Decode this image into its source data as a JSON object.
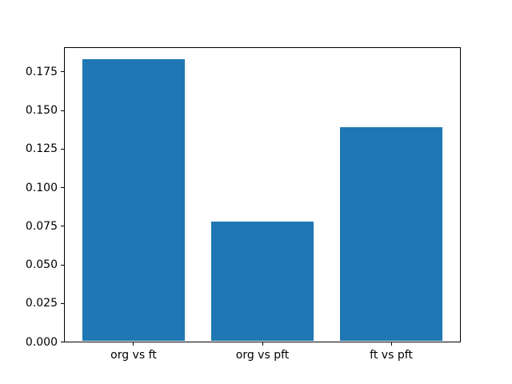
{
  "chart_data": {
    "type": "bar",
    "categories": [
      "org vs ft",
      "org vs pft",
      "ft vs pft"
    ],
    "values": [
      0.183,
      0.078,
      0.139
    ],
    "title": "",
    "xlabel": "",
    "ylabel": "",
    "ylim": [
      0,
      0.191
    ],
    "xlim": [
      -0.54,
      2.54
    ],
    "bar_width": 0.8,
    "yticks": [
      0.0,
      0.025,
      0.05,
      0.075,
      0.1,
      0.125,
      0.15,
      0.175
    ],
    "ytick_labels": [
      "0.000",
      "0.025",
      "0.050",
      "0.075",
      "0.100",
      "0.125",
      "0.150",
      "0.175"
    ],
    "bar_color": "#1f77b4",
    "spine_color": "#000000",
    "text_color": "#000000",
    "grid": false,
    "legend": null
  }
}
